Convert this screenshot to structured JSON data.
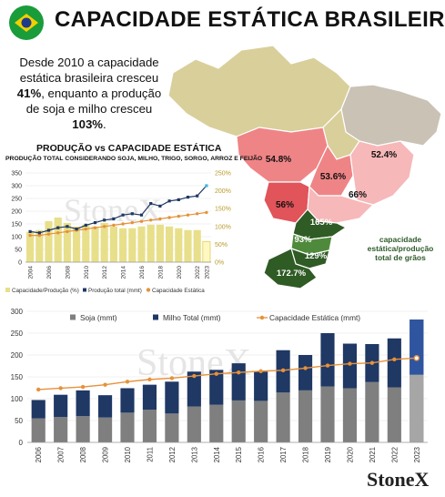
{
  "header": {
    "title": "CAPACIDADE ESTÁTICA BRASILEIRA"
  },
  "intro": {
    "line1": "Desde 2010 a capacidade",
    "line2": "estática brasileira cresceu",
    "pct1": "41%",
    "line3": ", enquanto  a produção",
    "line4": "de soja e milho cresceu",
    "pct2": "103%",
    "end": "."
  },
  "map": {
    "note": "capacidade estática/produção total de grãos",
    "states": [
      {
        "id": "MT",
        "label": "54.8%"
      },
      {
        "id": "GO",
        "label": "53.6%"
      },
      {
        "id": "MG",
        "label": "52.4%"
      },
      {
        "id": "MS",
        "label": "56%"
      },
      {
        "id": "SP",
        "label": "66%"
      },
      {
        "id": "PR",
        "label": "165%"
      },
      {
        "id": "SC",
        "label": "93%"
      },
      {
        "id": "RS-N",
        "label": "129%"
      },
      {
        "id": "RS",
        "label": "172.7%"
      }
    ],
    "colors": {
      "land": "#d9cf9a",
      "land_ne": "#c9c2b5",
      "red_dark": "#e0545a",
      "red_mid": "#ef8486",
      "red_light": "#f6b8b9",
      "green_dark": "#2f5b25",
      "green_mid": "#4f8a3c",
      "border": "#ffffff"
    }
  },
  "chart1": {
    "title": "PRODUÇÃO vs CAPACIDADE ESTÁTICA",
    "subtitle": "PRODUÇÃO TOTAL CONSIDERANDO SOJA, MILHO, TRIGO, SORGO, ARROZ E FEIJÃO",
    "watermark": "StoneX",
    "chart_data": {
      "type": "bar",
      "x": [
        2004,
        2005,
        2006,
        2007,
        2008,
        2009,
        2010,
        2011,
        2012,
        2013,
        2014,
        2015,
        2016,
        2017,
        2018,
        2019,
        2020,
        2021,
        2022,
        2023
      ],
      "x_tick_labels": [
        "2004",
        "2006",
        "2008",
        "2010",
        "2012",
        "2014",
        "2016",
        "2018",
        "2020",
        "2022",
        "2023"
      ],
      "y_left_ticks": [
        "0",
        "50",
        "100",
        "150",
        "200",
        "250",
        "300",
        "350"
      ],
      "y_right_ticks": [
        "0%",
        "50%",
        "100%",
        "150%",
        "200%",
        "250%"
      ],
      "ylim_left": [
        0,
        350
      ],
      "ylim_right": [
        0,
        250
      ],
      "series": [
        {
          "name": "Capacidade/Produção (%)",
          "kind": "bar",
          "axis": "right",
          "color": "#e8df8a",
          "values": [
            85,
            90,
            115,
            125,
            110,
            100,
            105,
            100,
            110,
            100,
            95,
            95,
            100,
            105,
            105,
            100,
            95,
            90,
            90,
            58
          ]
        },
        {
          "name": "Produção total (mmt)",
          "kind": "line",
          "axis": "left",
          "color": "#1f3864",
          "values": [
            120,
            115,
            125,
            135,
            140,
            130,
            145,
            155,
            165,
            170,
            185,
            190,
            185,
            230,
            220,
            240,
            245,
            255,
            260,
            300
          ]
        },
        {
          "name": "Capacidade Estática",
          "kind": "line",
          "axis": "left",
          "color": "#e6913b",
          "values": [
            105,
            105,
            110,
            115,
            120,
            125,
            130,
            135,
            140,
            145,
            150,
            155,
            160,
            165,
            170,
            175,
            180,
            185,
            190,
            195
          ]
        }
      ],
      "legend_position": "bottom"
    }
  },
  "chart2": {
    "watermark": "StoneX",
    "chart_data": {
      "type": "bar",
      "categories": [
        "2006",
        "2007",
        "2008",
        "2009",
        "2010",
        "2011",
        "2012",
        "2013",
        "2014",
        "2015",
        "2016",
        "2017",
        "2018",
        "2019",
        "2020",
        "2021",
        "2022",
        "2023"
      ],
      "y_ticks": [
        "0",
        "50",
        "100",
        "150",
        "200",
        "250",
        "300"
      ],
      "ylim": [
        0,
        300
      ],
      "series": [
        {
          "name": "Soja (mmt)",
          "kind": "stacked-bar",
          "color": "#7f7f7f",
          "values": [
            55,
            58,
            60,
            57,
            68,
            75,
            66,
            82,
            86,
            96,
            95,
            114,
            119,
            128,
            124,
            138,
            126,
            155
          ]
        },
        {
          "name": "Milho Total (mmt)",
          "kind": "stacked-bar",
          "color": "#1f3864",
          "values": [
            42,
            51,
            59,
            51,
            56,
            57,
            73,
            80,
            80,
            85,
            67,
            97,
            81,
            122,
            102,
            87,
            112,
            126
          ]
        },
        {
          "name": "Capacidade Estática (mmt)",
          "kind": "line",
          "color": "#e6913b",
          "values": [
            121,
            124,
            127,
            132,
            139,
            144,
            147,
            152,
            157,
            160,
            163,
            165,
            170,
            176,
            180,
            182,
            190,
            193
          ]
        }
      ],
      "legend_position": "top"
    }
  },
  "logo": "StoneX"
}
